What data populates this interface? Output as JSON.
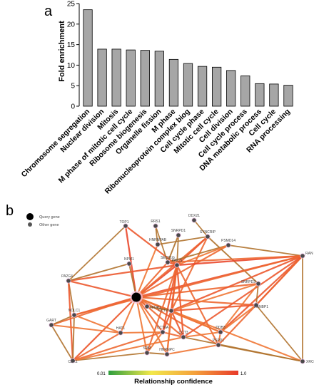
{
  "chart_data": [
    {
      "type": "bar",
      "panel_label": "a",
      "ylabel": "Fold enrichment",
      "ylim": [
        0,
        25
      ],
      "yticks": [
        "0",
        "5",
        "10",
        "15",
        "20",
        "25"
      ],
      "bar_color": "#a6a6a6",
      "categories": [
        "Chromosome segregation",
        "Nuclear division",
        "Mitosis",
        "M phase of mitotic cell cycle",
        "Ribosome biogenesis",
        "Organelle fission",
        "M phase",
        "Ribonucleoprotein complex biog",
        "Cell cycle phase",
        "Mitotic cell cycle",
        "Cell division",
        "Cell cycle process",
        "DNA metabolic process",
        "Cell cycle",
        "RNA processing"
      ],
      "values": [
        23.5,
        13.9,
        13.9,
        13.7,
        13.6,
        13.4,
        11.4,
        10.4,
        9.7,
        9.5,
        8.7,
        7.4,
        5.5,
        5.4,
        5.1
      ]
    },
    {
      "type": "network",
      "panel_label": "b",
      "legend": [
        {
          "label": "Query gene"
        },
        {
          "label": "Other gene"
        }
      ],
      "colorbar": {
        "title": "Relationship confidence",
        "min_label": "0.01",
        "max_label": "1.0",
        "colors": [
          "#2e9e3e",
          "#f2e84b",
          "#f4a23c",
          "#e83a2a"
        ]
      },
      "nodes": [
        {
          "id": "TOP1",
          "label": "TOP1"
        },
        {
          "id": "RRS1",
          "label": "RRS1"
        },
        {
          "id": "DDX21",
          "label": "DDX21"
        },
        {
          "id": "SNRPD1",
          "label": "SNRPD1"
        },
        {
          "id": "SYNCRIP",
          "label": "SYNCRIP"
        },
        {
          "id": "HNRNPAB",
          "label": "HNRNPAB"
        },
        {
          "id": "PSMD14",
          "label": "PSMD14"
        },
        {
          "id": "RAN",
          "label": "RAN"
        },
        {
          "id": "NPM1",
          "label": "NPM1"
        },
        {
          "id": "SEC61G",
          "label": "SEC61G"
        },
        {
          "id": "PA2G4",
          "label": "PA2G4"
        },
        {
          "id": "PAICS",
          "label": "PAICS"
        },
        {
          "id": "SNRPD3",
          "label": "SNRPD3"
        },
        {
          "id": "RANBP1",
          "label": "RANBP1"
        },
        {
          "id": "QUERY",
          "label": "",
          "query": true
        },
        {
          "id": "TFDP1",
          "label": "TFDP1"
        },
        {
          "id": "CCT2",
          "label": "CCT2"
        },
        {
          "id": "NOLC1",
          "label": "NOLC1"
        },
        {
          "id": "GART",
          "label": "GART"
        },
        {
          "id": "HAT1",
          "label": "HAT1"
        },
        {
          "id": "CCT6A",
          "label": "CCT6A"
        },
        {
          "id": "CCT3",
          "label": "CCT3"
        },
        {
          "id": "DDB3",
          "label": "DDB3"
        },
        {
          "id": "PSPD1",
          "label": "PSPD1"
        },
        {
          "id": "HNRNPC",
          "label": "HNRNPC"
        },
        {
          "id": "SRM",
          "label": "SRM"
        },
        {
          "id": "CDK1",
          "label": "CDK1"
        },
        {
          "id": "XRCC5",
          "label": "XRCC5"
        }
      ],
      "edges": [
        [
          "QUERY",
          "TOP1",
          0.95
        ],
        [
          "QUERY",
          "NPM1",
          0.7
        ],
        [
          "QUERY",
          "PA2G4",
          0.9
        ],
        [
          "QUERY",
          "SEC61G",
          0.85
        ],
        [
          "QUERY",
          "PAICS",
          0.95
        ],
        [
          "QUERY",
          "RAN",
          0.92
        ],
        [
          "QUERY",
          "SNRPD3",
          0.85
        ],
        [
          "QUERY",
          "RANBP1",
          0.85
        ],
        [
          "QUERY",
          "TFDP1",
          0.9
        ],
        [
          "QUERY",
          "CCT2",
          0.9
        ],
        [
          "QUERY",
          "NOLC1",
          0.9
        ],
        [
          "QUERY",
          "GART",
          0.85
        ],
        [
          "QUERY",
          "HAT1",
          0.8
        ],
        [
          "QUERY",
          "CCT6A",
          0.85
        ],
        [
          "QUERY",
          "CCT3",
          0.85
        ],
        [
          "QUERY",
          "DDB3",
          0.85
        ],
        [
          "QUERY",
          "PSPD1",
          0.85
        ],
        [
          "QUERY",
          "SRM",
          0.8
        ],
        [
          "QUERY",
          "HNRNPC",
          0.8
        ],
        [
          "QUERY",
          "CDK1",
          0.9
        ],
        [
          "QUERY",
          "XRCC5",
          0.8
        ],
        [
          "QUERY",
          "SYNCRIP",
          0.85
        ],
        [
          "QUERY",
          "PSMD14",
          0.85
        ],
        [
          "QUERY",
          "HNRNPAB",
          0.8
        ],
        [
          "TOP1",
          "PA2G4",
          0.6
        ],
        [
          "TOP1",
          "PAICS",
          0.9
        ],
        [
          "RRS1",
          "HNRNPAB",
          0.6
        ],
        [
          "RRS1",
          "SEC61G",
          0.6
        ],
        [
          "DDX21",
          "SYNCRIP",
          0.6
        ],
        [
          "SNRPD1",
          "SEC61G",
          0.7
        ],
        [
          "SNRPD1",
          "PAICS",
          0.6
        ],
        [
          "SYNCRIP",
          "PAICS",
          0.9
        ],
        [
          "SYNCRIP",
          "HNRNPAB",
          0.6
        ],
        [
          "SYNCRIP",
          "CCT2",
          0.85
        ],
        [
          "SYNCRIP",
          "SNRPD3",
          0.7
        ],
        [
          "PSMD14",
          "RAN",
          0.6
        ],
        [
          "PSMD14",
          "SEC61G",
          0.7
        ],
        [
          "PSMD14",
          "PAICS",
          0.8
        ],
        [
          "RAN",
          "PAICS",
          0.95
        ],
        [
          "RAN",
          "SEC61G",
          0.85
        ],
        [
          "RAN",
          "RANBP1",
          0.95
        ],
        [
          "RAN",
          "CCT2",
          0.9
        ],
        [
          "RAN",
          "DDB3",
          0.9
        ],
        [
          "RAN",
          "XRCC5",
          0.6
        ],
        [
          "RAN",
          "PSPD1",
          0.85
        ],
        [
          "RAN",
          "NOLC1",
          0.85
        ],
        [
          "RAN",
          "CCT3",
          0.9
        ],
        [
          "PA2G4",
          "NOLC1",
          0.6
        ],
        [
          "PA2G4",
          "CDK1",
          0.9
        ],
        [
          "PA2G4",
          "PAICS",
          0.9
        ],
        [
          "PA2G4",
          "NPM1",
          0.7
        ],
        [
          "PAICS",
          "CCT2",
          0.95
        ],
        [
          "PAICS",
          "CCT6A",
          0.9
        ],
        [
          "PAICS",
          "CCT3",
          0.9
        ],
        [
          "PAICS",
          "HNRNPC",
          0.85
        ],
        [
          "PAICS",
          "SRM",
          0.85
        ],
        [
          "PAICS",
          "PSPD1",
          0.85
        ],
        [
          "PAICS",
          "SEC61G",
          0.9
        ],
        [
          "SNRPD3",
          "RANBP1",
          0.6
        ],
        [
          "SNRPD3",
          "CCT2",
          0.8
        ],
        [
          "SNRPD3",
          "DDB3",
          0.8
        ],
        [
          "RANBP1",
          "CCT2",
          0.9
        ],
        [
          "RANBP1",
          "XRCC5",
          0.6
        ],
        [
          "RANBP1",
          "DDB3",
          0.8
        ],
        [
          "TFDP1",
          "CCT2",
          0.7
        ],
        [
          "CCT2",
          "CCT6A",
          0.9
        ],
        [
          "CCT2",
          "CCT3",
          0.9
        ],
        [
          "CCT2",
          "HNRNPC",
          0.8
        ],
        [
          "CCT2",
          "DDB3",
          0.8
        ],
        [
          "NOLC1",
          "GART",
          0.6
        ],
        [
          "NOLC1",
          "CDK1",
          0.7
        ],
        [
          "NOLC1",
          "HAT1",
          0.8
        ],
        [
          "GART",
          "CDK1",
          0.6
        ],
        [
          "GART",
          "HAT1",
          0.8
        ],
        [
          "CDK1",
          "SRM",
          0.6
        ],
        [
          "CDK1",
          "CCT6A",
          0.85
        ],
        [
          "CDK1",
          "HAT1",
          0.85
        ],
        [
          "CDK1",
          "CCT3",
          0.8
        ],
        [
          "HAT1",
          "CCT6A",
          0.8
        ],
        [
          "CCT6A",
          "CCT3",
          0.85
        ],
        [
          "CCT6A",
          "SRM",
          0.8
        ],
        [
          "CCT3",
          "DDB3",
          0.8
        ],
        [
          "DDB3",
          "PSPD1",
          0.8
        ],
        [
          "PSPD1",
          "XRCC5",
          0.6
        ],
        [
          "HNRNPC",
          "PSPD1",
          0.8
        ],
        [
          "SRM",
          "HNRNPC",
          0.7
        ],
        [
          "XRCC5",
          "CCT3",
          0.6
        ]
      ]
    }
  ]
}
